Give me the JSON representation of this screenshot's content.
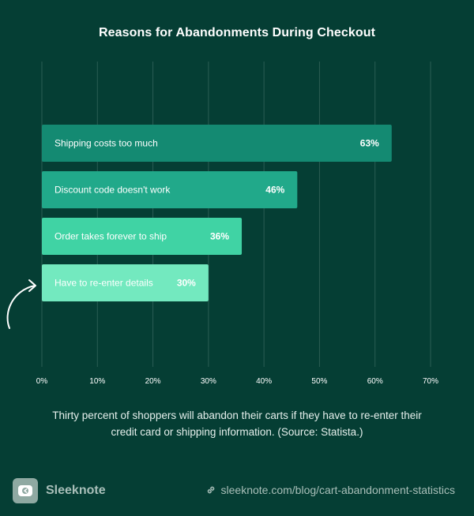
{
  "chart_data": {
    "type": "bar",
    "orientation": "horizontal",
    "title": "Reasons for Abandonments During Checkout",
    "categories": [
      "Shipping costs too much",
      "Discount code doesn't work",
      "Order takes forever to ship",
      "Have to re-enter details"
    ],
    "values": [
      63,
      46,
      36,
      30
    ],
    "value_labels": [
      "63%",
      "46%",
      "36%",
      "30%"
    ],
    "bar_colors": [
      "#148a72",
      "#21a98a",
      "#40d3a4",
      "#73e9bf"
    ],
    "xlim": [
      0,
      70
    ],
    "x_ticks": [
      0,
      10,
      20,
      30,
      40,
      50,
      60,
      70
    ],
    "x_tick_labels": [
      "0%",
      "10%",
      "20%",
      "30%",
      "40%",
      "50%",
      "60%",
      "70%"
    ],
    "grid": true,
    "highlight_arrow_on": "Have to re-enter details"
  },
  "caption": {
    "line1": "Thirty percent of shoppers will abandon their carts if they have to re-enter their",
    "line2": "credit card or shipping information. (Source: Statista.)"
  },
  "footer": {
    "brand_name": "Sleeknote",
    "brand_icon": "sleeknote-logo-icon",
    "link_icon": "link-icon",
    "link_text": "sleeknote.com/blog/cart-abandonment-statistics"
  },
  "colors": {
    "background": "#053e34",
    "grid": "#2b5d54",
    "text": "#ffffff",
    "muted": "#a9bfb9"
  }
}
